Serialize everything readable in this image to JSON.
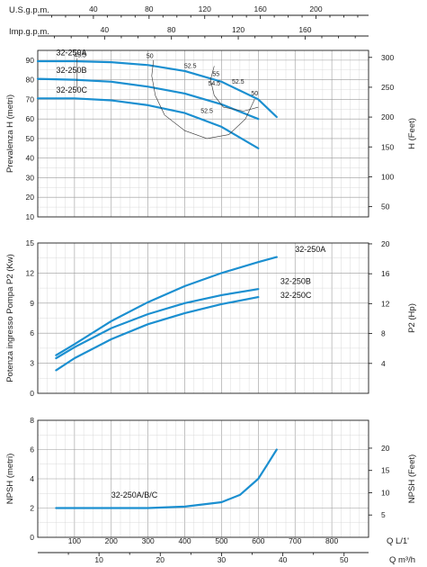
{
  "chart_data": [
    {
      "type": "line",
      "id": "head",
      "ylabel": "Prevalenza H (metri)",
      "y2label": "H (Feet)",
      "xlim": [
        0,
        900
      ],
      "ylim": [
        10,
        95
      ],
      "yticks": [
        10,
        20,
        30,
        40,
        50,
        60,
        70,
        80,
        90
      ],
      "y2ticks": [
        50,
        100,
        150,
        200,
        250,
        300
      ],
      "top_axes": [
        {
          "label": "U.S.g.p.m.",
          "ticks": [
            40,
            80,
            120,
            160,
            200
          ],
          "lpm_per_unit": 3.785
        },
        {
          "label": "Imp.g.p.m.",
          "ticks": [
            40,
            80,
            120,
            160
          ],
          "lpm_per_unit": 4.546
        }
      ],
      "series": [
        {
          "name": "32-250A",
          "x": [
            0,
            100,
            200,
            300,
            400,
            500,
            600,
            650
          ],
          "y": [
            89.5,
            89.5,
            89,
            87.5,
            84.5,
            79,
            70,
            61
          ]
        },
        {
          "name": "32-250B",
          "x": [
            0,
            100,
            200,
            300,
            400,
            500,
            600
          ],
          "y": [
            80.5,
            80,
            79,
            76.5,
            73,
            67.5,
            60
          ]
        },
        {
          "name": "32-250C",
          "x": [
            0,
            100,
            200,
            300,
            400,
            500,
            600
          ],
          "y": [
            70.5,
            70.5,
            69.5,
            67,
            63,
            56,
            45
          ]
        }
      ],
      "efficiency_labels": [
        "45.5",
        "50",
        "52.5",
        "55",
        "54.5",
        "52.5",
        "52.5",
        "50"
      ]
    },
    {
      "type": "line",
      "id": "power",
      "ylabel": "Potenza ingresso Pompa P2 (Kw)",
      "y2label": "P2 (Hp)",
      "xlim": [
        0,
        900
      ],
      "ylim": [
        0,
        15
      ],
      "yticks": [
        0,
        3,
        6,
        9,
        12,
        15
      ],
      "y2ticks": [
        4,
        8,
        12,
        16,
        20
      ],
      "series": [
        {
          "name": "32-250A",
          "x": [
            50,
            100,
            200,
            300,
            400,
            500,
            600,
            650
          ],
          "y": [
            3.8,
            4.9,
            7.2,
            9.1,
            10.7,
            12.0,
            13.1,
            13.6
          ]
        },
        {
          "name": "32-250B",
          "x": [
            50,
            100,
            200,
            300,
            400,
            500,
            600
          ],
          "y": [
            3.5,
            4.6,
            6.5,
            7.9,
            9.0,
            9.8,
            10.4
          ]
        },
        {
          "name": "32-250C",
          "x": [
            50,
            100,
            200,
            300,
            400,
            500,
            600
          ],
          "y": [
            2.3,
            3.5,
            5.4,
            6.9,
            8.0,
            8.9,
            9.6
          ]
        }
      ]
    },
    {
      "type": "line",
      "id": "npsh",
      "ylabel": "NPSH (metri)",
      "y2label": "NPSH (Feet)",
      "xlabel": "Q  L/1'",
      "xlabel2": "Q  m³/h",
      "xlim": [
        0,
        900
      ],
      "ylim": [
        0,
        8
      ],
      "yticks": [
        0,
        2,
        4,
        6,
        8
      ],
      "y2ticks": [
        5,
        10,
        15,
        20
      ],
      "xticks": [
        100,
        200,
        300,
        400,
        500,
        600,
        700,
        800
      ],
      "x2ticks": [
        10,
        20,
        30,
        40,
        50
      ],
      "series": [
        {
          "name": "32-250A/B/C",
          "x": [
            50,
            200,
            300,
            400,
            500,
            550,
            600,
            625,
            650
          ],
          "y": [
            2.0,
            2.0,
            2.0,
            2.1,
            2.4,
            2.9,
            4.0,
            5.0,
            6.0
          ]
        }
      ]
    }
  ]
}
